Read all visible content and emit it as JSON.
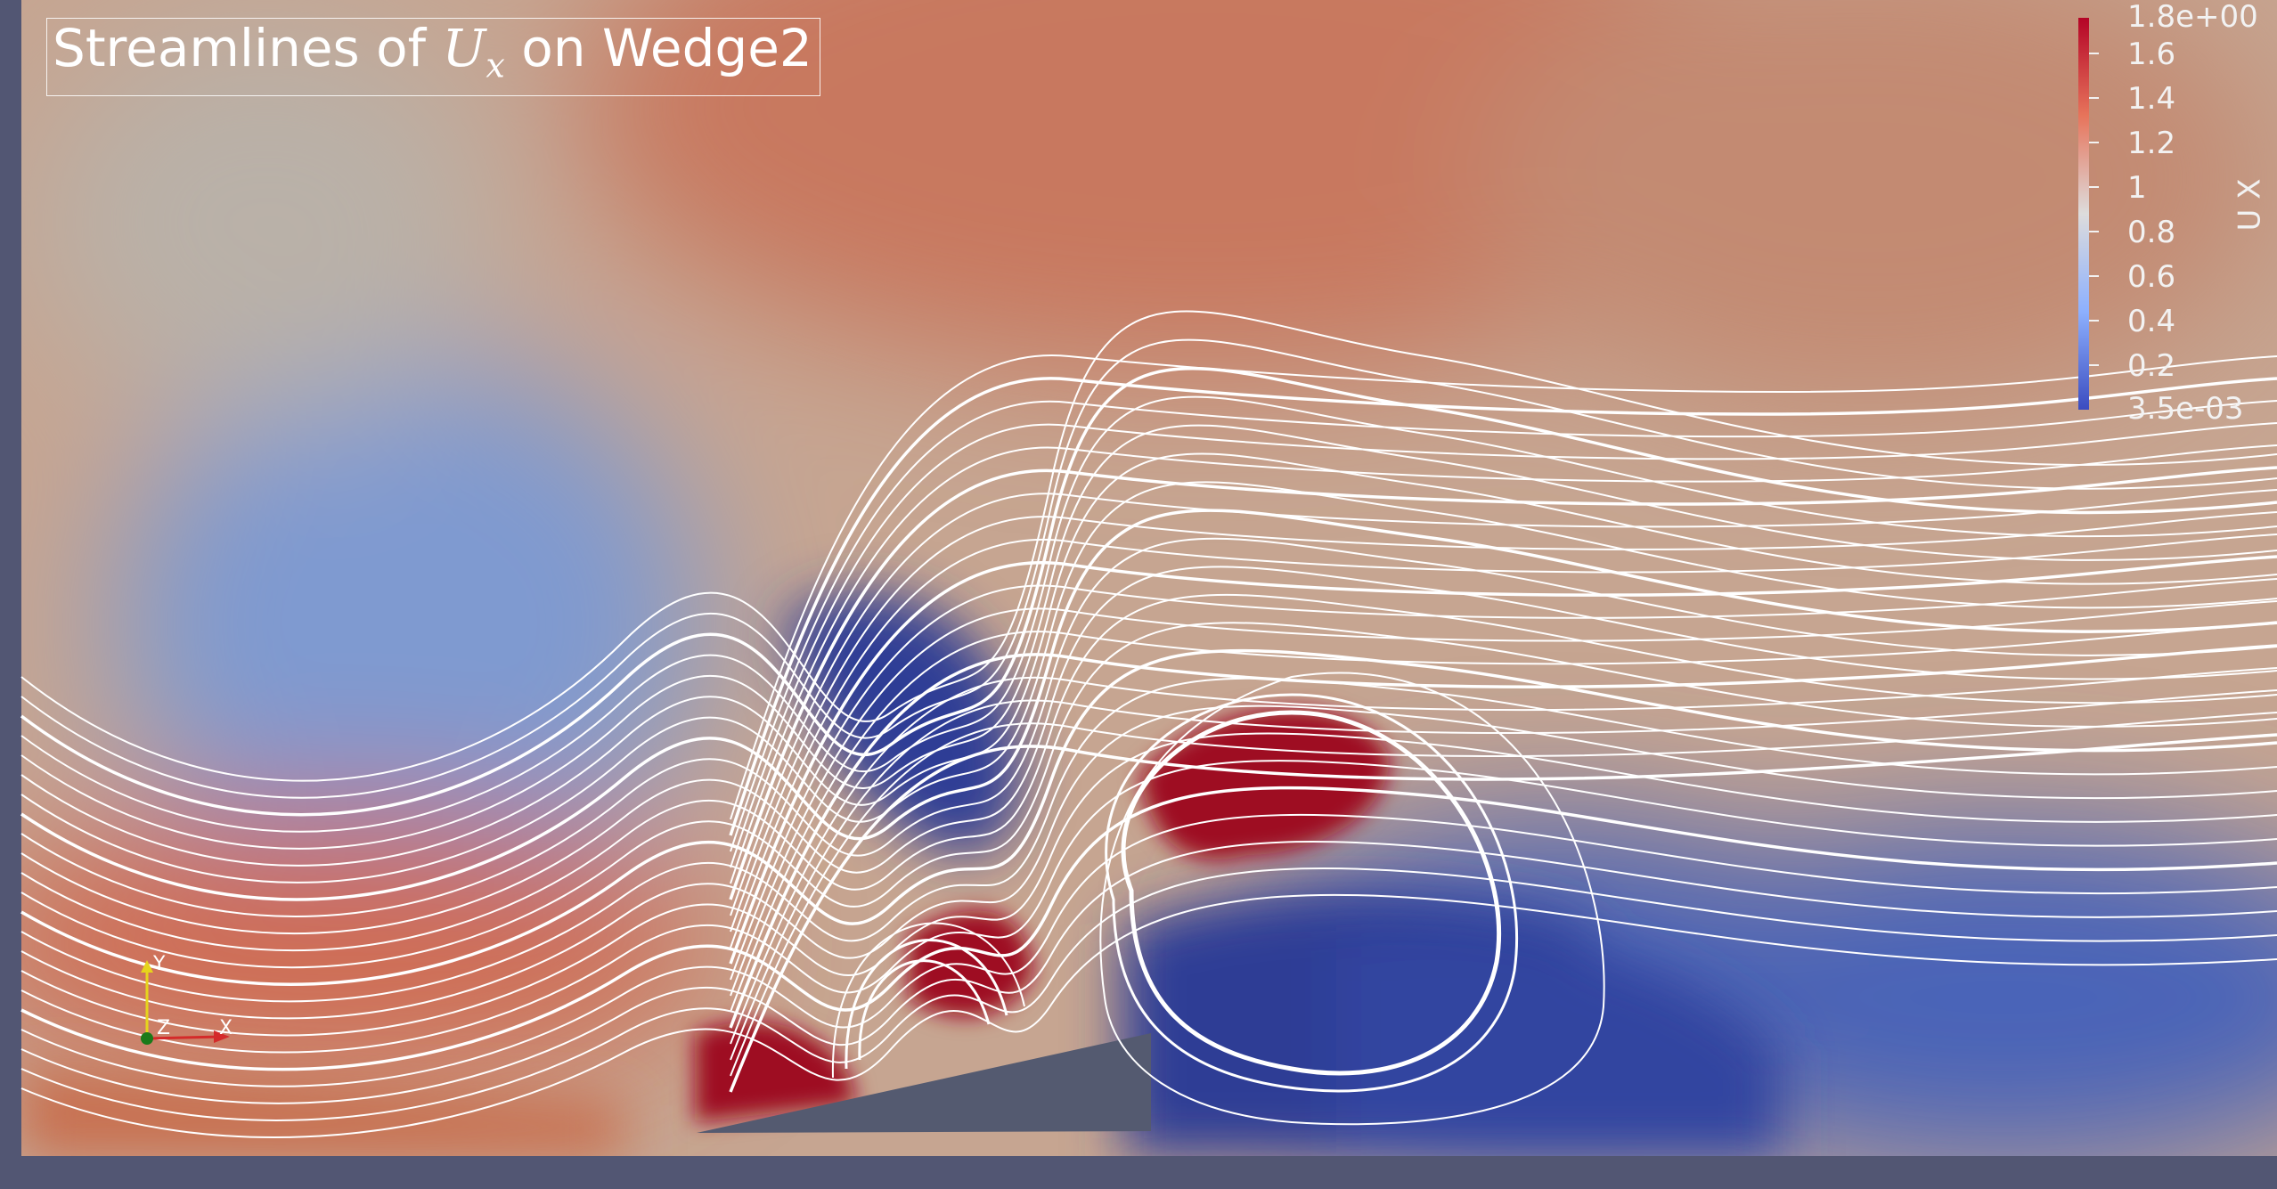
{
  "title": {
    "prefix": "Streamlines of ",
    "var": "U",
    "sub": "x",
    "suffix": " on Wedge2"
  },
  "colorbar": {
    "title": "U X",
    "labels": [
      "1.8e+00",
      "1.6",
      "1.4",
      "1.2",
      "1",
      "0.8",
      "0.6",
      "0.4",
      "0.2",
      "3.5e-03"
    ],
    "colors": {
      "max": "#b40426",
      "mid": "#dddcdc",
      "min": "#3b4cc0"
    }
  },
  "axes": {
    "x": "X",
    "y": "Y",
    "z": "Z"
  },
  "colors": {
    "background": "#525673",
    "wedge": "#545a70",
    "streamline": "#ffffff"
  }
}
